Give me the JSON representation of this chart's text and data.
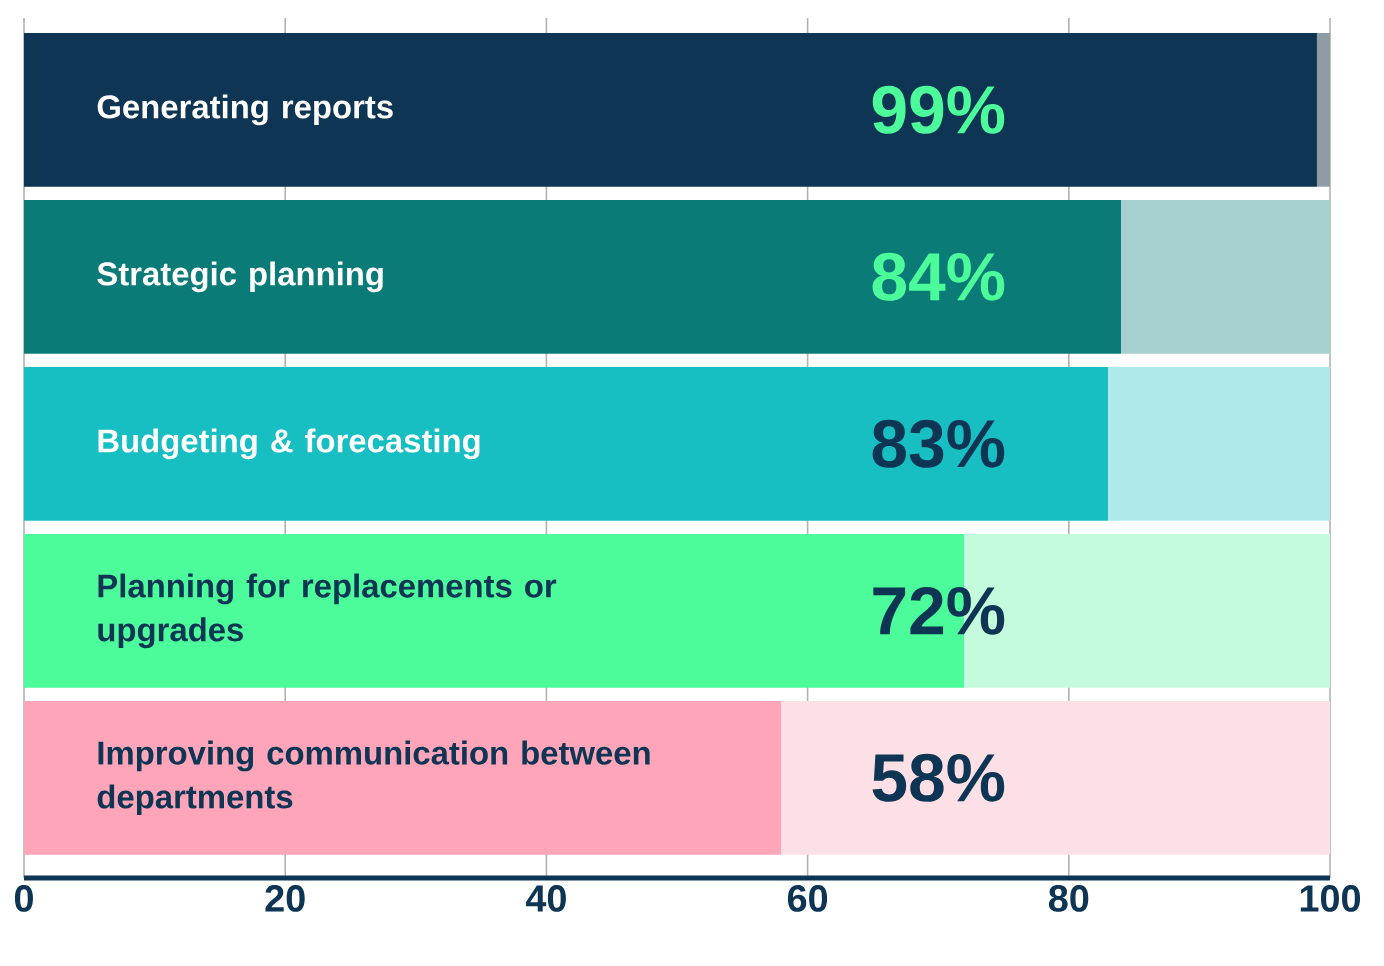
{
  "chart_data": {
    "type": "bar",
    "orientation": "horizontal",
    "stacked": true,
    "categories": [
      "Generating reports",
      "Strategic planning",
      "Budgeting & forecasting",
      "Planning for replacements or upgrades",
      "Improving communication between departments"
    ],
    "series": [
      {
        "values": [
          99,
          84,
          83,
          72,
          58
        ],
        "colors": [
          "#0e3553",
          "#0b7b78",
          "#17bfc3",
          "#4cfc9a",
          "#fea5b9"
        ],
        "value_labels": [
          "99%",
          "84%",
          "83%",
          "72%",
          "58%"
        ]
      },
      {
        "values": [
          1,
          16,
          17,
          28,
          42
        ],
        "colors": [
          "#8e9ca6",
          "#a6cfd0",
          "#b0e9ea",
          "#c4fbdc",
          "#fde0e6"
        ]
      }
    ],
    "xlim": [
      0,
      100
    ],
    "xticks": [
      0,
      20,
      40,
      60,
      80,
      100
    ],
    "grid": "x"
  }
}
